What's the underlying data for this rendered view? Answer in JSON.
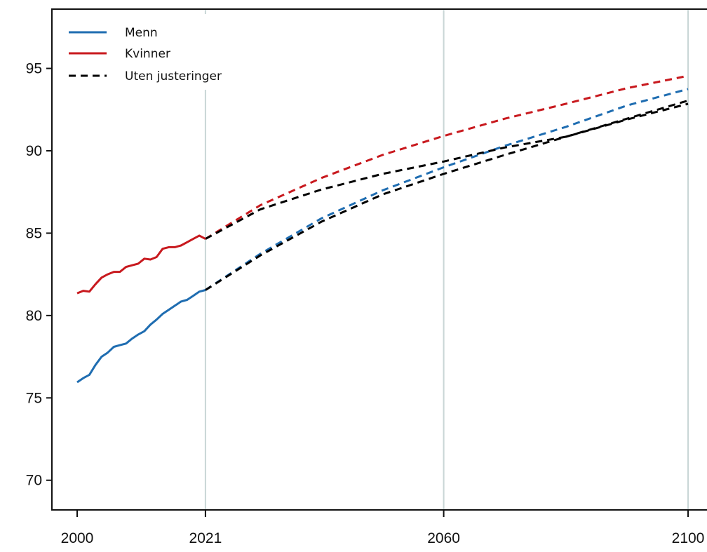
{
  "chart_data": {
    "type": "line",
    "title": "",
    "xlabel": "",
    "ylabel": "",
    "xlim": [
      2000,
      2100
    ],
    "ylim": [
      68.2,
      98.6
    ],
    "x_ticks": [
      2000,
      2021,
      2060,
      2100
    ],
    "x_tick_labels": [
      "2000",
      "2021",
      "2060",
      "2100"
    ],
    "y_ticks": [
      70,
      75,
      80,
      85,
      90,
      95
    ],
    "y_tick_labels": [
      "70",
      "75",
      "80",
      "85",
      "90",
      "95"
    ],
    "vertical_reference_lines": [
      2021,
      2060,
      2100
    ],
    "grid": false,
    "legend": {
      "position": "top-left",
      "entries": [
        {
          "label": "Menn",
          "color": "#1f6db1",
          "style": "solid"
        },
        {
          "label": "Kvinner",
          "color": "#c8191e",
          "style": "solid"
        },
        {
          "label": "Uten justeringer",
          "color": "#000000",
          "style": "dashed"
        }
      ]
    },
    "series": [
      {
        "name": "Menn",
        "color": "#1f6db1",
        "style": "solid",
        "x": [
          2000,
          2001,
          2002,
          2003,
          2004,
          2005,
          2006,
          2007,
          2008,
          2009,
          2010,
          2011,
          2012,
          2013,
          2014,
          2015,
          2016,
          2017,
          2018,
          2019,
          2020,
          2021
        ],
        "y": [
          75.95,
          76.2,
          76.4,
          77.0,
          77.5,
          77.75,
          78.1,
          78.2,
          78.3,
          78.6,
          78.85,
          79.05,
          79.45,
          79.75,
          80.1,
          80.35,
          80.6,
          80.85,
          80.95,
          81.2,
          81.45,
          81.55
        ]
      },
      {
        "name": "Kvinner",
        "color": "#c8191e",
        "style": "solid",
        "x": [
          2000,
          2001,
          2002,
          2003,
          2004,
          2005,
          2006,
          2007,
          2008,
          2009,
          2010,
          2011,
          2012,
          2013,
          2014,
          2015,
          2016,
          2017,
          2018,
          2019,
          2020,
          2021
        ],
        "y": [
          81.35,
          81.5,
          81.45,
          81.9,
          82.3,
          82.5,
          82.65,
          82.65,
          82.95,
          83.05,
          83.15,
          83.45,
          83.4,
          83.55,
          84.05,
          84.15,
          84.15,
          84.25,
          84.45,
          84.65,
          84.85,
          84.65
        ]
      },
      {
        "name": "Menn",
        "color": "#1f6db1",
        "style": "dashed",
        "x": [
          2021,
          2030,
          2040,
          2050,
          2060,
          2070,
          2080,
          2090,
          2100
        ],
        "y": [
          81.55,
          83.75,
          85.9,
          87.6,
          89.0,
          90.3,
          91.45,
          92.75,
          93.75
        ]
      },
      {
        "name": "Kvinner",
        "color": "#c8191e",
        "style": "dashed",
        "x": [
          2021,
          2030,
          2040,
          2050,
          2060,
          2070,
          2080,
          2090,
          2100
        ],
        "y": [
          84.65,
          86.7,
          88.35,
          89.75,
          90.9,
          91.95,
          92.85,
          93.8,
          94.55
        ]
      },
      {
        "name": "Uten justeringer",
        "color": "#000000",
        "style": "dashed",
        "x": [
          2021,
          2030,
          2040,
          2050,
          2060,
          2070,
          2080,
          2090,
          2100
        ],
        "y": [
          84.65,
          86.45,
          87.65,
          88.6,
          89.35,
          90.2,
          90.85,
          91.9,
          92.85
        ]
      },
      {
        "name": "Uten justeringer",
        "color": "#000000",
        "style": "dashed",
        "x": [
          2021,
          2030,
          2040,
          2050,
          2060,
          2070,
          2080,
          2090,
          2100
        ],
        "y": [
          81.55,
          83.65,
          85.7,
          87.35,
          88.6,
          89.75,
          90.85,
          91.95,
          93.05
        ]
      }
    ]
  }
}
